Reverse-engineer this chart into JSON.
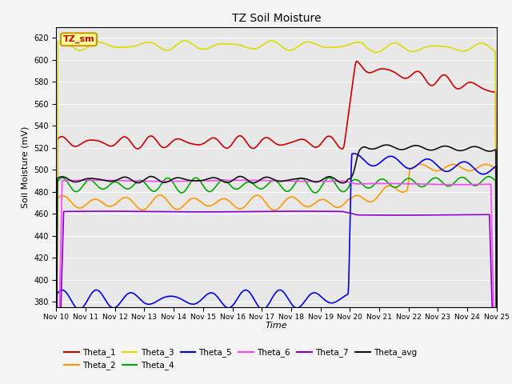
{
  "title": "TZ Soil Moisture",
  "xlabel": "Time",
  "ylabel": "Soil Moisture (mV)",
  "ylim": [
    375,
    630
  ],
  "xlim": [
    0,
    15
  ],
  "background_color": "#e8e8e8",
  "grid_color": "#ffffff",
  "legend_box_label": "TZ_sm",
  "legend_box_color": "#ffff99",
  "legend_box_border": "#cc9900",
  "x_tick_labels": [
    "Nov 10",
    "Nov 11",
    "Nov 12",
    "Nov 13",
    "Nov 14",
    "Nov 15",
    "Nov 16",
    "Nov 17",
    "Nov 18",
    "Nov 19",
    "Nov 20",
    "Nov 21",
    "Nov 22",
    "Nov 23",
    "Nov 24",
    "Nov 25"
  ],
  "series": {
    "Theta_1": {
      "color": "#cc0000",
      "lw": 1.2
    },
    "Theta_2": {
      "color": "#ff9900",
      "lw": 1.2
    },
    "Theta_3": {
      "color": "#dddd00",
      "lw": 1.2
    },
    "Theta_4": {
      "color": "#00aa00",
      "lw": 1.2
    },
    "Theta_5": {
      "color": "#0000ee",
      "lw": 1.2
    },
    "Theta_6": {
      "color": "#ff44ff",
      "lw": 1.2
    },
    "Theta_7": {
      "color": "#8800cc",
      "lw": 1.2
    },
    "Theta_avg": {
      "color": "#111111",
      "lw": 1.2
    }
  }
}
